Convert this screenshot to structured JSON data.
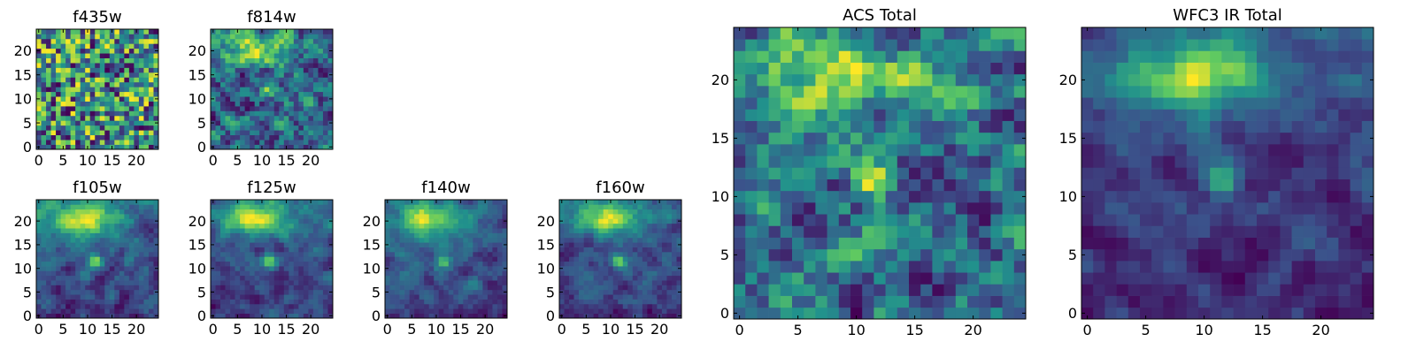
{
  "figure": {
    "colormap": "viridis",
    "colormap_stops": [
      "#440154",
      "#3b528b",
      "#21918c",
      "#5ec962",
      "#fde725"
    ]
  },
  "chart_data": [
    {
      "type": "heatmap",
      "title": "f435w",
      "grid_size": 25,
      "tick_labels_x": [
        "0",
        "5",
        "10",
        "15",
        "20"
      ],
      "tick_labels_y": [
        "0",
        "5",
        "10",
        "15",
        "20"
      ],
      "pattern": "noise",
      "seed": 11
    },
    {
      "type": "heatmap",
      "title": "f814w",
      "grid_size": 25,
      "tick_labels_x": [
        "0",
        "5",
        "10",
        "15",
        "20"
      ],
      "tick_labels_y": [
        "0",
        "5",
        "10",
        "15",
        "20"
      ],
      "pattern": "blob",
      "seed": 23
    },
    {
      "type": "heatmap",
      "title": "f105w",
      "grid_size": 25,
      "tick_labels_x": [
        "0",
        "5",
        "10",
        "15",
        "20"
      ],
      "tick_labels_y": [
        "0",
        "5",
        "10",
        "15",
        "20"
      ],
      "pattern": "smooth",
      "seed": 37
    },
    {
      "type": "heatmap",
      "title": "f125w",
      "grid_size": 25,
      "tick_labels_x": [
        "0",
        "5",
        "10",
        "15",
        "20"
      ],
      "tick_labels_y": [
        "0",
        "5",
        "10",
        "15",
        "20"
      ],
      "pattern": "smooth",
      "seed": 41
    },
    {
      "type": "heatmap",
      "title": "f140w",
      "grid_size": 25,
      "tick_labels_x": [
        "0",
        "5",
        "10",
        "15",
        "20"
      ],
      "tick_labels_y": [
        "0",
        "5",
        "10",
        "15",
        "20"
      ],
      "pattern": "smooth",
      "seed": 53
    },
    {
      "type": "heatmap",
      "title": "f160w",
      "grid_size": 25,
      "tick_labels_x": [
        "0",
        "5",
        "10",
        "15",
        "20"
      ],
      "tick_labels_y": [
        "0",
        "5",
        "10",
        "15",
        "20"
      ],
      "pattern": "smooth",
      "seed": 67
    },
    {
      "type": "heatmap",
      "title": "ACS Total",
      "grid_size": 25,
      "tick_labels_x": [
        "0",
        "5",
        "10",
        "15",
        "20"
      ],
      "tick_labels_y": [
        "0",
        "5",
        "10",
        "15",
        "20"
      ],
      "pattern": "blob",
      "seed": 71
    },
    {
      "type": "heatmap",
      "title": "WFC3 IR Total",
      "grid_size": 25,
      "tick_labels_x": [
        "0",
        "5",
        "10",
        "15",
        "20"
      ],
      "tick_labels_y": [
        "0",
        "5",
        "10",
        "15",
        "20"
      ],
      "pattern": "smooth",
      "seed": 89
    }
  ]
}
